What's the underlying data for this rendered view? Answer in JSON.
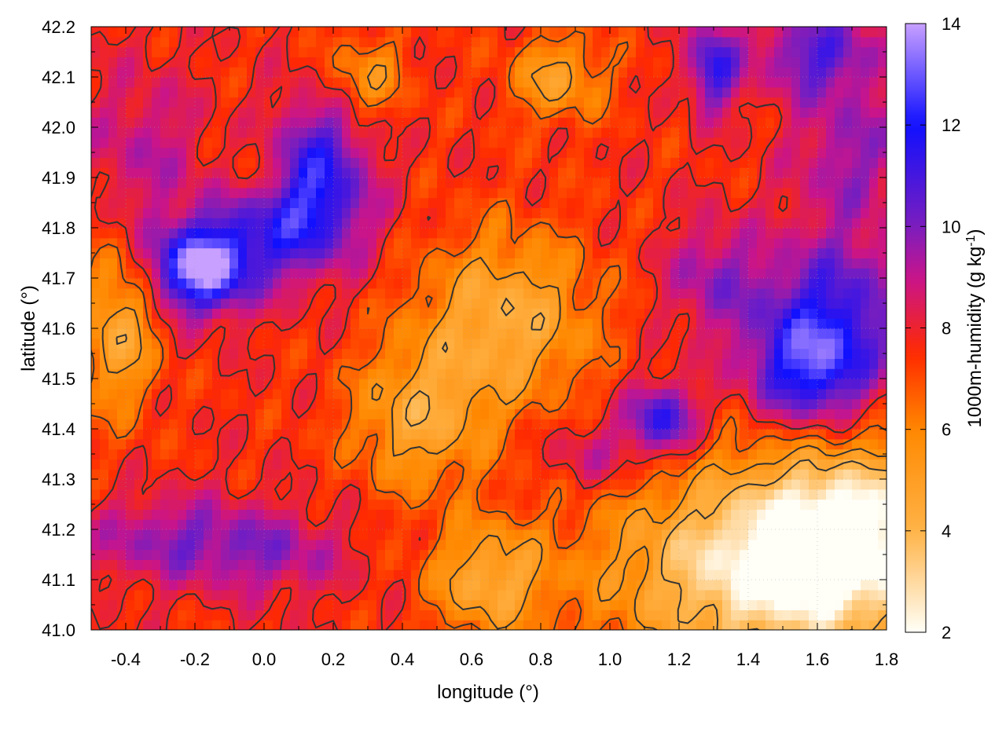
{
  "chart_data": {
    "type": "heatmap",
    "title": "",
    "xlabel": "longitude (°)",
    "ylabel": "latitude (°)",
    "colorbar_label": "1000m-humidity (g kg-1)",
    "colorbar_label_parts": {
      "base": "1000m-humidity (g kg",
      "superscript": "-1",
      "suffix": ")"
    },
    "xlim": [
      -0.5,
      1.8
    ],
    "ylim": [
      41.0,
      42.2
    ],
    "clim": [
      2,
      14
    ],
    "x_ticks": [
      -0.4,
      -0.2,
      0.0,
      0.2,
      0.4,
      0.6,
      0.8,
      1.0,
      1.2,
      1.4,
      1.6,
      1.8
    ],
    "x_tick_labels": [
      "-0.4",
      "-0.2",
      "0.0",
      "0.2",
      "0.4",
      "0.6",
      "0.8",
      "1.0",
      "1.2",
      "1.4",
      "1.6",
      "1.8"
    ],
    "y_ticks": [
      41.0,
      41.1,
      41.2,
      41.3,
      41.4,
      41.5,
      41.6,
      41.7,
      41.8,
      41.9,
      42.0,
      42.1,
      42.2
    ],
    "y_tick_labels": [
      "41.0",
      "41.1",
      "41.2",
      "41.3",
      "41.4",
      "41.5",
      "41.6",
      "41.7",
      "41.8",
      "41.9",
      "42.0",
      "42.1",
      "42.2"
    ],
    "colorbar_ticks": [
      2,
      4,
      6,
      8,
      10,
      12,
      14
    ],
    "colorbar_tick_labels": [
      "2",
      "4",
      "6",
      "8",
      "10",
      "12",
      "14"
    ],
    "colormap_stops": [
      {
        "value": 2,
        "color": "#fffff8"
      },
      {
        "value": 4,
        "color": "#ffb347"
      },
      {
        "value": 6,
        "color": "#ff8800"
      },
      {
        "value": 7.5,
        "color": "#ff2a00"
      },
      {
        "value": 9,
        "color": "#c8148c"
      },
      {
        "value": 10,
        "color": "#7a1ebe"
      },
      {
        "value": 12,
        "color": "#1010ff"
      },
      {
        "value": 14,
        "color": "#c8a0ff"
      }
    ],
    "grid": true,
    "contours": true,
    "humidity_blobs": [
      {
        "lon": -0.18,
        "lat": 41.72,
        "amp": 6.5,
        "sx": 0.1,
        "sy": 0.06
      },
      {
        "lon": 0.08,
        "lat": 41.82,
        "amp": 4.5,
        "sx": 0.14,
        "sy": 0.08
      },
      {
        "lon": 0.15,
        "lat": 41.95,
        "amp": 3.0,
        "sx": 0.1,
        "sy": 0.08
      },
      {
        "lon": 1.58,
        "lat": 41.52,
        "amp": 4.5,
        "sx": 0.12,
        "sy": 0.08
      },
      {
        "lon": 1.65,
        "lat": 41.65,
        "amp": 3.0,
        "sx": 0.15,
        "sy": 0.1
      },
      {
        "lon": 1.15,
        "lat": 41.42,
        "amp": 4.0,
        "sx": 0.07,
        "sy": 0.05
      },
      {
        "lon": 1.3,
        "lat": 42.12,
        "amp": 3.8,
        "sx": 0.05,
        "sy": 0.06
      },
      {
        "lon": 1.6,
        "lat": 42.15,
        "amp": 3.0,
        "sx": 0.12,
        "sy": 0.06
      },
      {
        "lon": 1.7,
        "lat": 41.95,
        "amp": 2.0,
        "sx": 0.12,
        "sy": 0.1
      },
      {
        "lon": 1.3,
        "lat": 41.7,
        "amp": 2.0,
        "sx": 0.1,
        "sy": 0.08
      },
      {
        "lon": -0.25,
        "lat": 41.18,
        "amp": 2.2,
        "sx": 0.18,
        "sy": 0.06
      },
      {
        "lon": 0.05,
        "lat": 41.15,
        "amp": 1.6,
        "sx": 0.14,
        "sy": 0.06
      },
      {
        "lon": -0.35,
        "lat": 41.95,
        "amp": 1.5,
        "sx": 0.12,
        "sy": 0.12
      },
      {
        "lon": 0.95,
        "lat": 41.35,
        "amp": 1.5,
        "sx": 0.1,
        "sy": 0.05
      },
      {
        "lon": 0.7,
        "lat": 41.62,
        "amp": -3.2,
        "sx": 0.18,
        "sy": 0.12
      },
      {
        "lon": 0.45,
        "lat": 41.42,
        "amp": -2.8,
        "sx": 0.14,
        "sy": 0.1
      },
      {
        "lon": 0.65,
        "lat": 41.1,
        "amp": -3.0,
        "sx": 0.12,
        "sy": 0.08
      },
      {
        "lon": 1.45,
        "lat": 41.12,
        "amp": -5.0,
        "sx": 0.32,
        "sy": 0.14
      },
      {
        "lon": 1.7,
        "lat": 41.2,
        "amp": -4.0,
        "sx": 0.2,
        "sy": 0.12
      },
      {
        "lon": -0.42,
        "lat": 41.6,
        "amp": -3.0,
        "sx": 0.08,
        "sy": 0.12
      },
      {
        "lon": 0.0,
        "lat": 41.9,
        "amp": -2.2,
        "sx": 0.08,
        "sy": 0.06
      },
      {
        "lon": 0.85,
        "lat": 42.1,
        "amp": -2.5,
        "sx": 0.1,
        "sy": 0.06
      },
      {
        "lon": 0.3,
        "lat": 42.1,
        "amp": -2.0,
        "sx": 0.08,
        "sy": 0.06
      }
    ],
    "humidity_base": 7.6,
    "contour_levels": [
      4.2,
      5.4,
      6.6,
      7.8
    ]
  }
}
